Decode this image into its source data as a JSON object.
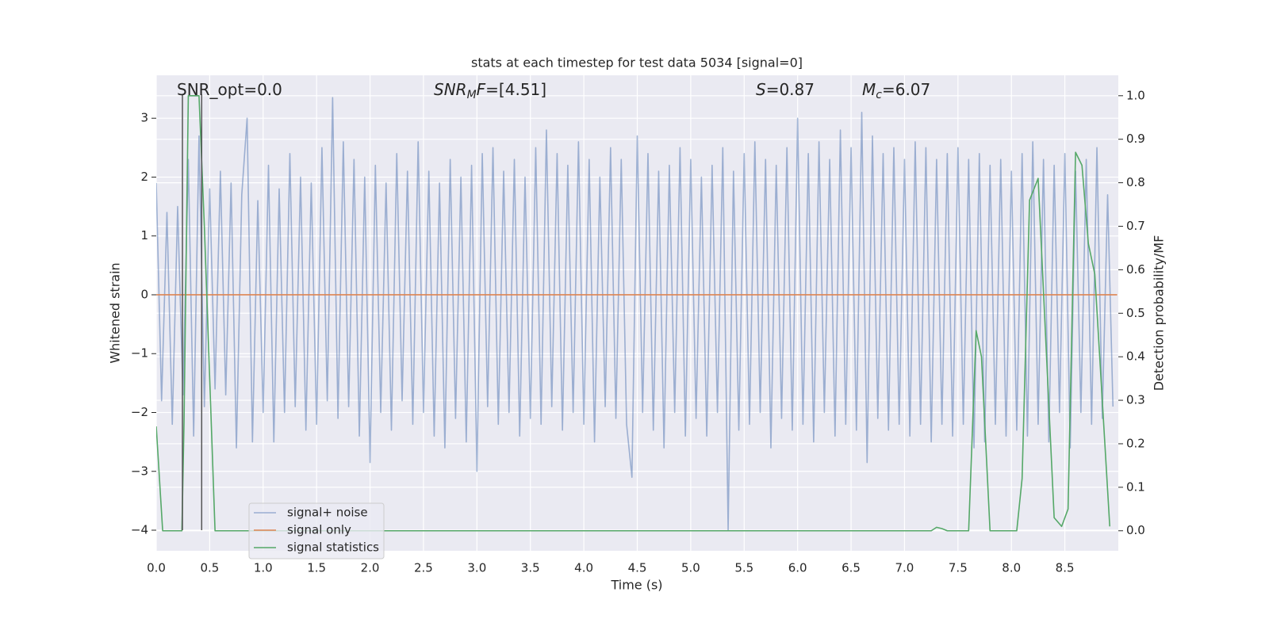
{
  "chart_data": {
    "type": "line",
    "title": "stats at each timestep for test data 5034 [signal=0]",
    "xlabel": "Time (s)",
    "ylabel": "Whitened strain",
    "y2label": "Detection probability/MF",
    "xlim": [
      0,
      9.0
    ],
    "ylim": [
      -4.35,
      3.73
    ],
    "y2lim": [
      -0.046,
      1.047
    ],
    "xticks": [
      {
        "value": 0,
        "label": "0.0"
      },
      0.5,
      {
        "value": 1,
        "label": "1.0"
      },
      1.5,
      {
        "value": 2,
        "label": "2.0"
      },
      2.5,
      {
        "value": 3,
        "label": "3.0"
      },
      3.5,
      {
        "value": 4,
        "label": "4.0"
      },
      4.5,
      {
        "value": 5,
        "label": "5.0"
      },
      5.5,
      {
        "value": 6,
        "label": "6.0"
      },
      6.5,
      {
        "value": 7,
        "label": "7.0"
      },
      7.5,
      {
        "value": 8,
        "label": "8.0"
      },
      8.5
    ],
    "yticks": [
      {
        "value": -4,
        "label": "−4"
      },
      {
        "value": -3,
        "label": "−3"
      },
      {
        "value": -2,
        "label": "−2"
      },
      {
        "value": -1,
        "label": "−1"
      },
      0,
      1,
      2,
      3
    ],
    "y2ticks": [
      {
        "value": 0,
        "label": "0.0"
      },
      0.1,
      0.2,
      0.3,
      0.4,
      0.5,
      0.6,
      0.7,
      0.8,
      0.9,
      {
        "value": 1,
        "label": "1.0"
      }
    ],
    "grid": true,
    "legend": "lower left",
    "series": [
      {
        "name": "signal+ noise",
        "color": "#4c72b0",
        "opacity": 0.5,
        "x": [
          0,
          0.05,
          0.1,
          0.15,
          0.2,
          0.25,
          0.3,
          0.35,
          0.4,
          0.45,
          0.5,
          0.55,
          0.6,
          0.65,
          0.7,
          0.75,
          0.8,
          0.85,
          0.9,
          0.95,
          1,
          1.05,
          1.1,
          1.15,
          1.2,
          1.25,
          1.3,
          1.35,
          1.4,
          1.45,
          1.5,
          1.55,
          1.6,
          1.65,
          1.7,
          1.75,
          1.8,
          1.85,
          1.9,
          1.95,
          2,
          2.05,
          2.1,
          2.15,
          2.2,
          2.25,
          2.3,
          2.35,
          2.4,
          2.45,
          2.5,
          2.55,
          2.6,
          2.65,
          2.7,
          2.75,
          2.8,
          2.85,
          2.9,
          2.95,
          3,
          3.05,
          3.1,
          3.15,
          3.2,
          3.25,
          3.3,
          3.35,
          3.4,
          3.45,
          3.5,
          3.55,
          3.6,
          3.65,
          3.7,
          3.75,
          3.8,
          3.85,
          3.9,
          3.95,
          4,
          4.05,
          4.1,
          4.15,
          4.2,
          4.25,
          4.3,
          4.35,
          4.4,
          4.45,
          4.5,
          4.55,
          4.6,
          4.65,
          4.7,
          4.75,
          4.8,
          4.85,
          4.9,
          4.95,
          5,
          5.05,
          5.1,
          5.15,
          5.2,
          5.25,
          5.3,
          5.35,
          5.4,
          5.45,
          5.5,
          5.55,
          5.6,
          5.65,
          5.7,
          5.75,
          5.8,
          5.85,
          5.9,
          5.95,
          6,
          6.05,
          6.1,
          6.15,
          6.2,
          6.25,
          6.3,
          6.35,
          6.4,
          6.45,
          6.5,
          6.55,
          6.6,
          6.65,
          6.7,
          6.75,
          6.8,
          6.85,
          6.9,
          6.95,
          7,
          7.05,
          7.1,
          7.15,
          7.2,
          7.25,
          7.3,
          7.35,
          7.4,
          7.45,
          7.5,
          7.55,
          7.6,
          7.65,
          7.7,
          7.75,
          7.8,
          7.85,
          7.9,
          7.95,
          8,
          8.05,
          8.1,
          8.15,
          8.2,
          8.25,
          8.3,
          8.35,
          8.4,
          8.45,
          8.5,
          8.55,
          8.6,
          8.65,
          8.7,
          8.75,
          8.8,
          8.85,
          8.9,
          8.95
        ],
        "values": [
          1.9,
          -1.8,
          1.4,
          -2.2,
          1.5,
          -1.7,
          2.3,
          -2.4,
          2.7,
          -1.9,
          1.8,
          -1.6,
          2.1,
          -1.7,
          1.9,
          -2.6,
          1.7,
          3.0,
          -2.5,
          1.6,
          -2.0,
          2.2,
          -2.5,
          1.8,
          -2.0,
          2.4,
          -1.9,
          2.0,
          -2.3,
          1.9,
          -2.2,
          2.5,
          -1.8,
          3.35,
          -2.1,
          2.6,
          -1.9,
          2.3,
          -2.4,
          2.0,
          -2.85,
          2.2,
          -2.0,
          1.9,
          -2.3,
          2.4,
          -1.8,
          2.1,
          -2.2,
          2.6,
          -2.0,
          2.1,
          -2.4,
          1.9,
          -2.6,
          2.3,
          -2.1,
          2.0,
          -2.5,
          2.2,
          -3.0,
          2.4,
          -1.9,
          2.5,
          -2.2,
          2.1,
          -2.0,
          2.3,
          -2.4,
          2.0,
          -2.1,
          2.5,
          -2.2,
          2.8,
          -1.9,
          2.4,
          -2.3,
          2.2,
          -2.0,
          2.6,
          -2.2,
          2.3,
          -2.5,
          2.0,
          -1.9,
          2.5,
          -2.1,
          2.3,
          -2.2,
          -3.1,
          2.7,
          -2.0,
          2.4,
          -2.3,
          2.1,
          -2.6,
          2.2,
          -2.0,
          2.5,
          -2.4,
          2.3,
          -2.1,
          2.0,
          -2.4,
          2.2,
          -2.0,
          2.5,
          -4.0,
          2.1,
          -2.3,
          2.4,
          -2.2,
          2.6,
          -2.0,
          2.3,
          -2.6,
          2.2,
          -2.1,
          2.5,
          -2.3,
          3.0,
          -2.2,
          2.4,
          -2.5,
          2.6,
          -2.0,
          2.3,
          -2.4,
          2.8,
          -2.2,
          2.5,
          -2.3,
          3.1,
          -2.85,
          2.7,
          -2.1,
          2.4,
          -2.3,
          2.5,
          -2.2,
          2.3,
          -2.4,
          2.6,
          -2.2,
          2.5,
          -2.5,
          2.3,
          -2.2,
          2.4,
          -2.4,
          2.5,
          -2.2,
          2.3,
          -2.6,
          2.4,
          -2.5,
          2.2,
          -2.2,
          2.3,
          -2.4,
          2.1,
          -2.3,
          2.4,
          -2.4,
          2.6,
          -2.2,
          2.3,
          -2.5,
          2.2,
          -2.0,
          2.4,
          -2.6,
          2.1,
          -2.0,
          2.3,
          -2.2,
          2.5,
          -2.1,
          1.7,
          -1.9
        ]
      },
      {
        "name": "signal only",
        "color": "#dd8452",
        "opacity": 1,
        "x": [
          0,
          8.99
        ],
        "values": [
          0,
          0
        ]
      },
      {
        "name": "signal statistics",
        "color": "#55a868",
        "opacity": 1,
        "axis": "y2",
        "x": [
          0,
          0.06,
          0.24,
          0.26,
          0.3,
          0.4,
          0.45,
          0.55,
          7.25,
          7.3,
          7.35,
          7.4,
          7.6,
          7.67,
          7.72,
          7.8,
          7.85,
          8.05,
          8.1,
          8.17,
          8.25,
          8.4,
          8.47,
          8.53,
          8.6,
          8.66,
          8.72,
          8.78,
          8.92
        ],
        "values": [
          0.24,
          0,
          0,
          0.25,
          1.0,
          1.0,
          0.7,
          0,
          0,
          0.008,
          0.005,
          0,
          0,
          0.46,
          0.4,
          0,
          0,
          0,
          0.12,
          0.76,
          0.81,
          0.03,
          0.01,
          0.05,
          0.87,
          0.84,
          0.66,
          0.59,
          0.01
        ]
      }
    ],
    "vlines": [
      {
        "x": 0.245,
        "y": [
          3.4,
          -4
        ],
        "color": "#555555"
      },
      {
        "x": 0.425,
        "y": [
          3.4,
          -4
        ],
        "color": "#555555"
      }
    ],
    "annotations": [
      {
        "parts": [
          {
            "text": "SNR_opt=0.0"
          }
        ]
      },
      {
        "parts": [
          {
            "text": "SNR",
            "italic": true
          },
          {
            "text": "M",
            "italic": true,
            "sub": true
          },
          {
            "text": "F",
            "italic": true
          },
          {
            "text": "=[4.51]"
          }
        ]
      },
      {
        "parts": [
          {
            "text": "S",
            "italic": true
          },
          {
            "text": "=0.87"
          }
        ]
      },
      {
        "parts": [
          {
            "text": "M",
            "italic": true
          },
          {
            "text": "c",
            "italic": true,
            "sub": true
          },
          {
            "text": "=6.07"
          }
        ]
      }
    ]
  }
}
